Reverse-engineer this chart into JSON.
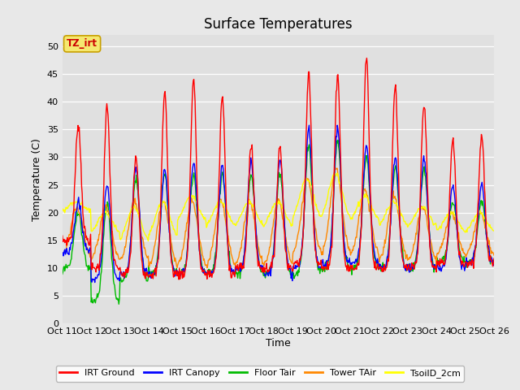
{
  "title": "Surface Temperatures",
  "xlabel": "Time",
  "ylabel": "Temperature (C)",
  "ylim": [
    0,
    52
  ],
  "background_color": "#e8e8e8",
  "plot_bg_color": "#e0e0e0",
  "grid_color": "#ffffff",
  "annotation_text": "TZ_irt",
  "annotation_bg": "#f5e870",
  "annotation_border": "#c8a000",
  "tick_labels": [
    "Oct 11",
    "Oct 12",
    "Oct 13",
    "Oct 14",
    "Oct 15",
    "Oct 16",
    "Oct 17",
    "Oct 18",
    "Oct 19",
    "Oct 20",
    "Oct 21",
    "Oct 22",
    "Oct 23",
    "Oct 24",
    "Oct 25",
    "Oct 26"
  ],
  "series_colors": {
    "IRT_Ground": "#ff0000",
    "IRT_Canopy": "#0000ff",
    "Floor_Tair": "#00bb00",
    "Tower_TAir": "#ff8800",
    "TsoilD_2cm": "#ffff00"
  },
  "legend_colors": [
    "#ff0000",
    "#0000ff",
    "#00bb00",
    "#ff8800",
    "#ffff00"
  ],
  "legend_labels": [
    "IRT Ground",
    "IRT Canopy",
    "Floor Tair",
    "Tower TAir",
    "TsoilD_2cm"
  ],
  "yticks": [
    0,
    5,
    10,
    15,
    20,
    25,
    30,
    35,
    40,
    45,
    50
  ]
}
